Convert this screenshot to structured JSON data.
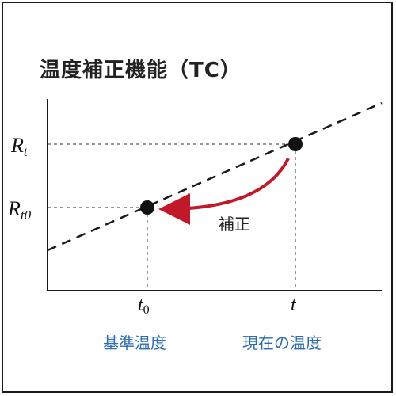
{
  "title": "温度補正機能（TC）",
  "y_labels": {
    "rt": "R",
    "rt_sub": "t",
    "rt0": "R",
    "rt0_sub": "t0"
  },
  "x_labels": {
    "t0": "t",
    "t0_sub": "0",
    "t": "t"
  },
  "annotation": "補正",
  "captions": {
    "reference": "基準温度",
    "current": "現在の温度"
  },
  "colors": {
    "arrow": "#c0192a",
    "caption": "#2b6cb0",
    "line": "#1a1a1a"
  }
}
